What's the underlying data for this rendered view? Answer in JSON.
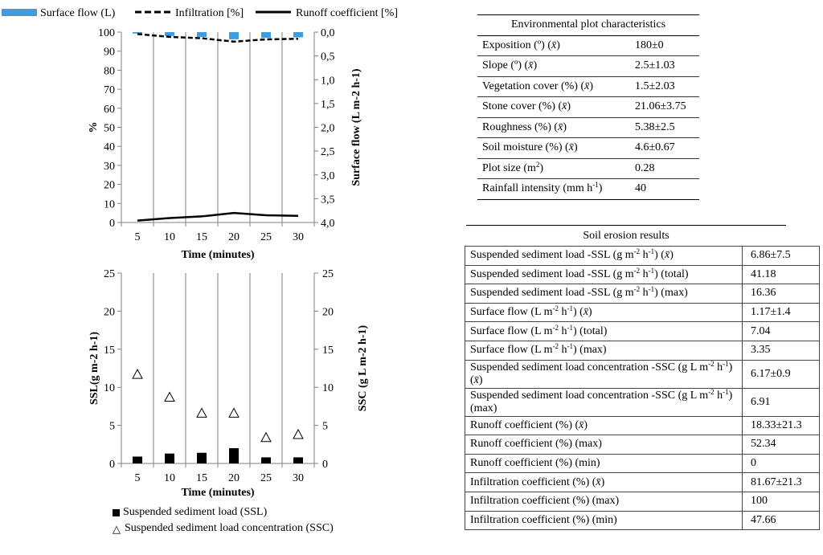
{
  "colors": {
    "surface_flow": "#3d9be0",
    "grid": "#808080",
    "axis": "#808080",
    "black": "#000000"
  },
  "legend_top": {
    "surface_flow": "Surface flow (L)",
    "infiltration": "Infiltration [%]",
    "runoff": "Runoff coefficient [%]"
  },
  "legend_bottom": {
    "ssl": "Suspended sediment load (SSL)",
    "ssc": "Suspended sediment load concentration (SSC)"
  },
  "chart_data": [
    {
      "type": "line",
      "x": [
        5,
        10,
        15,
        20,
        25,
        30
      ],
      "xlabel": "Time (minutes)",
      "ylabel": "%",
      "y2label": "Surface flow (L m-2 h-1)",
      "ylim": [
        0,
        100
      ],
      "y2lim": [
        0,
        4.0
      ],
      "y2_inverted": true,
      "yticks": [
        "0",
        "10",
        "20",
        "30",
        "40",
        "50",
        "60",
        "70",
        "80",
        "90",
        "100"
      ],
      "y2ticks": [
        "0,0",
        "0,5",
        "1,0",
        "1,5",
        "2,0",
        "2,5",
        "3,0",
        "3,5",
        "4,0"
      ],
      "series": [
        {
          "name": "Surface flow (L)",
          "axis": "right",
          "kind": "bar",
          "values": [
            0.03,
            0.08,
            0.1,
            0.15,
            0.12,
            0.11
          ]
        },
        {
          "name": "Infiltration [%]",
          "axis": "left",
          "kind": "dashed-line",
          "values": [
            99,
            97.5,
            96.8,
            95,
            96.2,
            96.5
          ]
        },
        {
          "name": "Runoff coefficient [%]",
          "axis": "left",
          "kind": "line",
          "values": [
            1,
            2.3,
            3.2,
            5,
            3.8,
            3.5
          ]
        }
      ]
    },
    {
      "type": "bar",
      "x": [
        5,
        10,
        15,
        20,
        25,
        30
      ],
      "xlabel": "Time (minutes)",
      "ylabel": "SSL(g m-2 h-1)",
      "y2label": "SSC (g L m-2 h-1)",
      "ylim": [
        0,
        25
      ],
      "y2lim": [
        0,
        25
      ],
      "yticks": [
        "0",
        "5",
        "10",
        "15",
        "20",
        "25"
      ],
      "y2ticks": [
        "0",
        "5",
        "10",
        "15",
        "20",
        "25"
      ],
      "series": [
        {
          "name": "Suspended sediment load (SSL)",
          "axis": "left",
          "kind": "bar",
          "values": [
            0.9,
            1.3,
            1.4,
            2.0,
            0.8,
            0.8
          ]
        },
        {
          "name": "Suspended sediment load concentration (SSC)",
          "axis": "right",
          "kind": "triangle",
          "values": [
            11.7,
            8.7,
            6.6,
            6.6,
            3.4,
            3.8
          ]
        }
      ]
    }
  ],
  "env_table": {
    "title": "Environmental plot characteristics",
    "rows": [
      {
        "label": "Exposition (º) (x̄)",
        "value": "180±0"
      },
      {
        "label": "Slope (º) (x̄)",
        "value": "2.5±1.03"
      },
      {
        "label": "Vegetation cover (%) (x̄)",
        "value": "1.5±2.03"
      },
      {
        "label": "Stone cover (%) (x̄)",
        "value": "21.06±3.75"
      },
      {
        "label": "Roughness (%) (x̄)",
        "value": "5.38±2.5"
      },
      {
        "label": "Soil moisture (%) (x̄)",
        "value": "4.6±0.67"
      },
      {
        "label": "Plot size (m2)",
        "value": "0.28"
      },
      {
        "label": "Rainfall intensity (mm h-1)",
        "value": "40"
      }
    ]
  },
  "soil_table": {
    "title": "Soil erosion results",
    "rows": [
      {
        "label": "Suspended sediment load -SSL (g m-2 h-1) (x̄)",
        "value": "6.86±7.5"
      },
      {
        "label": "Suspended sediment load -SSL (g m-2 h-1)  (total)",
        "value": "41.18"
      },
      {
        "label": "Suspended sediment load -SSL (g m-2 h-1)  (max)",
        "value": "16.36"
      },
      {
        "label": "Surface flow (L m-2 h-1) (x̄)",
        "value": "1.17±1.4"
      },
      {
        "label": "Surface flow (L m-2 h-1) (total)",
        "value": "7.04"
      },
      {
        "label": "Surface flow (L m-2 h-1) (max)",
        "value": "3.35"
      },
      {
        "label": "Suspended sediment load concentration -SSC (g L  m-2 h-1) (x̄)",
        "value": "6.17±0.9"
      },
      {
        "label": "Suspended sediment load concentration -SSC (g L  m-2 h-1) (max)",
        "value": "6.91"
      },
      {
        "label": "Runoff coefficient (%) (x̄)",
        "value": "18.33±21.3"
      },
      {
        "label": "Runoff coefficient (%) (max)",
        "value": "52.34"
      },
      {
        "label": "Runoff coefficient (%) (min)",
        "value": "0"
      },
      {
        "label": "Infiltration coefficient (%) (x̄)",
        "value": "81.67±21.3"
      },
      {
        "label": "Infiltration coefficient (%) (max)",
        "value": "100"
      },
      {
        "label": "Infiltration coefficient (%) (min)",
        "value": "47.66"
      }
    ]
  }
}
